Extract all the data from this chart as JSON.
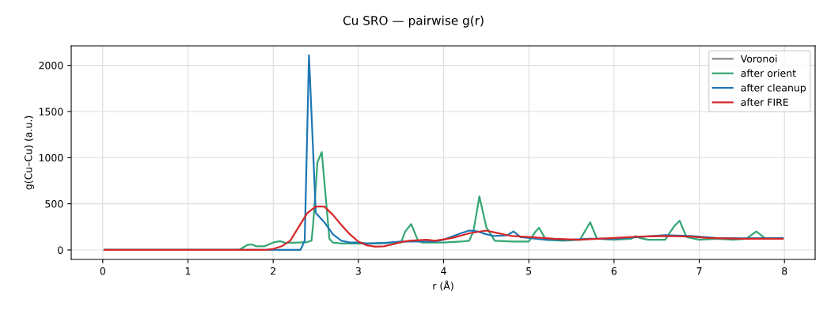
{
  "chart_data": {
    "type": "line",
    "title": "Cu SRO — pairwise g(r)",
    "xlabel": "r (Å)",
    "ylabel": "g(Cu–Cu) (a.u.)",
    "xlim": [
      -0.37,
      8.36
    ],
    "ylim": [
      -103,
      2211
    ],
    "xticks": [
      0,
      1,
      2,
      3,
      4,
      5,
      6,
      7,
      8
    ],
    "yticks": [
      0,
      500,
      1000,
      1500,
      2000
    ],
    "grid": true,
    "legend": "top right",
    "marker": "none",
    "line_style": "solid",
    "series": [
      {
        "name": "Voronoi",
        "color": "#888888"
      },
      {
        "name": "after orient",
        "color": "#35a675",
        "x": [
          0.02,
          1.6,
          1.7,
          1.75,
          1.8,
          1.9,
          2.0,
          2.08,
          2.15,
          2.3,
          2.4,
          2.45,
          2.47,
          2.52,
          2.57,
          2.66,
          2.7,
          2.8,
          3.0,
          3.2,
          3.5,
          3.55,
          3.62,
          3.7,
          3.75,
          3.9,
          4.0,
          4.2,
          4.3,
          4.35,
          4.42,
          4.5,
          4.6,
          4.8,
          5.0,
          5.08,
          5.12,
          5.2,
          5.4,
          5.6,
          5.67,
          5.72,
          5.8,
          6.0,
          6.2,
          6.25,
          6.3,
          6.4,
          6.6,
          6.7,
          6.77,
          6.85,
          7.0,
          7.2,
          7.4,
          7.55,
          7.67,
          7.77,
          7.98
        ],
        "values": [
          0,
          0,
          55,
          60,
          40,
          40,
          80,
          95,
          75,
          80,
          85,
          100,
          290,
          950,
          1060,
          120,
          80,
          70,
          70,
          70,
          80,
          200,
          280,
          100,
          80,
          80,
          80,
          90,
          100,
          200,
          580,
          250,
          100,
          90,
          90,
          200,
          240,
          110,
          100,
          110,
          220,
          300,
          120,
          110,
          120,
          150,
          130,
          110,
          110,
          250,
          317,
          140,
          110,
          120,
          110,
          120,
          200,
          130,
          120
        ]
      },
      {
        "name": "after cleanup",
        "color": "#1f77b4",
        "x": [
          0.02,
          2.32,
          2.37,
          2.42,
          2.5,
          2.6,
          2.7,
          2.8,
          2.9,
          3.0,
          3.1,
          3.3,
          3.5,
          3.9,
          4.0,
          4.2,
          4.3,
          4.4,
          4.5,
          4.6,
          4.75,
          4.82,
          4.9,
          5.0,
          5.2,
          5.5,
          5.7,
          6.0,
          6.3,
          6.6,
          6.9,
          7.2,
          7.5,
          7.98
        ],
        "values": [
          0,
          0,
          100,
          2110,
          400,
          300,
          170,
          100,
          80,
          80,
          70,
          75,
          90,
          90,
          110,
          180,
          210,
          200,
          170,
          150,
          160,
          200,
          140,
          130,
          110,
          110,
          120,
          120,
          140,
          160,
          150,
          130,
          125,
          130
        ]
      },
      {
        "name": "after FIRE",
        "color": "#d62728",
        "x": [
          0.02,
          1.9,
          2.0,
          2.1,
          2.2,
          2.3,
          2.4,
          2.5,
          2.6,
          2.7,
          2.8,
          2.9,
          3.0,
          3.1,
          3.2,
          3.3,
          3.4,
          3.5,
          3.6,
          3.8,
          3.9,
          4.1,
          4.3,
          4.5,
          4.6,
          4.8,
          5.0,
          5.3,
          5.6,
          6.0,
          6.3,
          6.6,
          6.9,
          7.1,
          7.5,
          7.98
        ],
        "values": [
          0,
          0,
          10,
          40,
          100,
          250,
          400,
          470,
          470,
          380,
          270,
          170,
          90,
          50,
          35,
          40,
          60,
          85,
          100,
          110,
          100,
          130,
          180,
          210,
          190,
          150,
          140,
          120,
          110,
          130,
          145,
          150,
          145,
          130,
          120,
          120
        ]
      }
    ]
  }
}
